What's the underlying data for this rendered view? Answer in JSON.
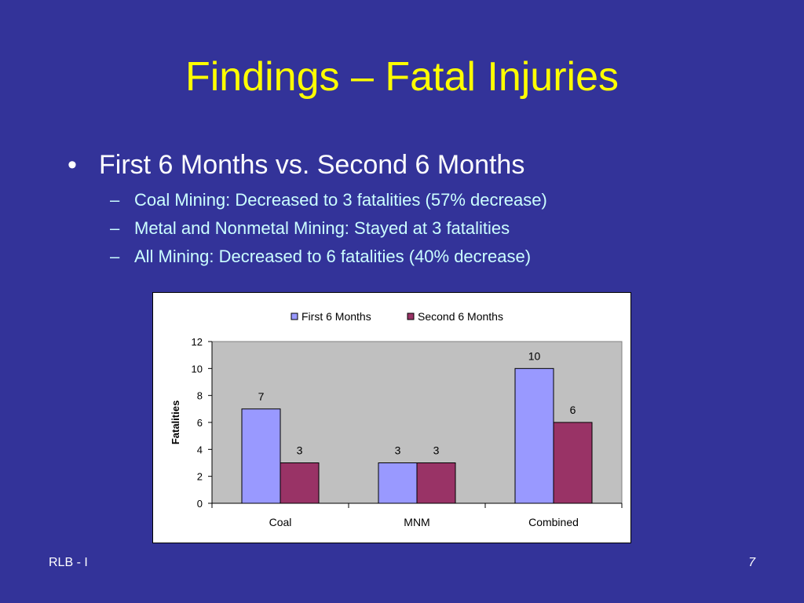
{
  "slide": {
    "title": "Findings – Fatal Injuries",
    "bullet": "First 6 Months vs. Second 6 Months",
    "sub_bullets": [
      "Coal Mining: Decreased to 3 fatalities (57% decrease)",
      "Metal and Nonmetal Mining: Stayed at 3 fatalities",
      "All Mining: Decreased to 6 fatalities (40% decrease)"
    ],
    "footer_left": "RLB - I",
    "page_number": "7"
  },
  "chart_data": {
    "type": "bar",
    "categories": [
      "Coal",
      "MNM",
      "Combined"
    ],
    "series": [
      {
        "name": "First 6 Months",
        "values": [
          7,
          3,
          10
        ],
        "color": "#9999ff"
      },
      {
        "name": "Second 6 Months",
        "values": [
          3,
          3,
          6
        ],
        "color": "#993366"
      }
    ],
    "ylabel": "Fatalities",
    "ylim": [
      0,
      12
    ],
    "yticks": [
      0,
      2,
      4,
      6,
      8,
      10,
      12
    ],
    "grid": false,
    "plot_background": "#c0c0c0",
    "legend_position": "top"
  }
}
